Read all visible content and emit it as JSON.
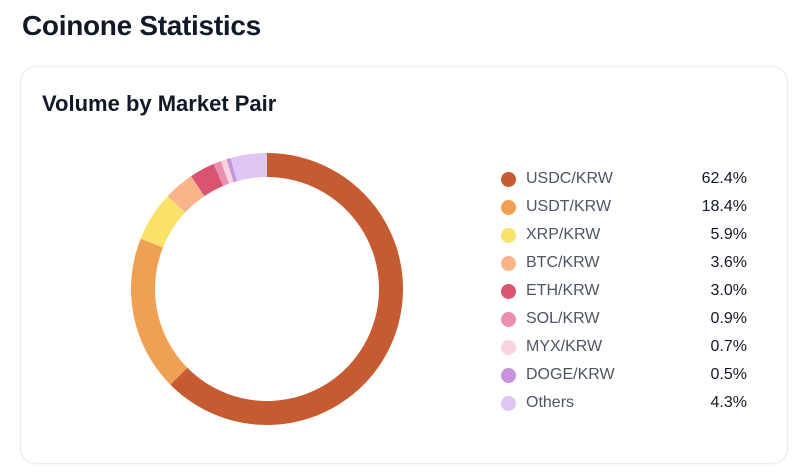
{
  "page": {
    "title": "Coinone Statistics"
  },
  "card": {
    "title": "Volume by Market Pair"
  },
  "chart_data": {
    "type": "pie",
    "variant": "donut",
    "title": "Volume by Market Pair",
    "categories": [
      "USDC/KRW",
      "USDT/KRW",
      "XRP/KRW",
      "BTC/KRW",
      "ETH/KRW",
      "SOL/KRW",
      "MYX/KRW",
      "DOGE/KRW",
      "Others"
    ],
    "values": [
      62.4,
      18.4,
      5.9,
      3.6,
      3.0,
      0.9,
      0.7,
      0.5,
      4.3
    ],
    "labels": [
      "62.4%",
      "18.4%",
      "5.9%",
      "3.6%",
      "3.0%",
      "0.9%",
      "0.7%",
      "0.5%",
      "4.3%"
    ],
    "colors": [
      "#c65a30",
      "#f0a052",
      "#fbe36a",
      "#f9b48a",
      "#d9546f",
      "#ec8eb0",
      "#fbd3e0",
      "#c495dc",
      "#e0c6f5"
    ],
    "legend_position": "right",
    "start_angle_deg": 0,
    "direction": "clockwise"
  }
}
